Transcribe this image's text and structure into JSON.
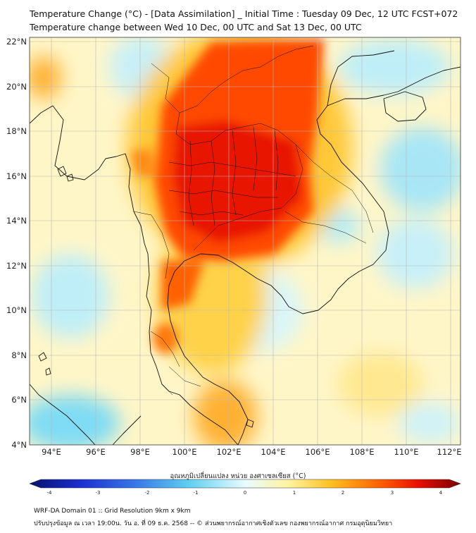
{
  "title": {
    "line1": "Temperature Change (°C) - [Data Assimilation] _ Initial Time : Tuesday 09 Dec, 12 UTC FCST+072",
    "line2": "Temperature change between Wed 10 Dec, 00 UTC and Sat 13 Dec, 00 UTC"
  },
  "map": {
    "lon_range": [
      93,
      112.5
    ],
    "lat_range": [
      4,
      22.2
    ],
    "lon_ticks": [
      "94°E",
      "96°E",
      "98°E",
      "100°E",
      "102°E",
      "104°E",
      "106°E",
      "108°E",
      "110°E",
      "112°E"
    ],
    "lat_ticks": [
      "22°N",
      "20°N",
      "18°N",
      "16°N",
      "14°N",
      "12°N",
      "10°N",
      "8°N",
      "6°N",
      "4°N"
    ],
    "grid": true
  },
  "colorbar": {
    "label": "อุณหภูมิเปลี่ยนแปลง หน่วย องศาเซลเซียส (°C)",
    "ticks": [
      "-4",
      "-3",
      "-2",
      "-1",
      "0",
      "1",
      "2",
      "3",
      "4"
    ],
    "range": [
      -4,
      4
    ],
    "colors": [
      "#08106e",
      "#1c2fd0",
      "#3a7ae8",
      "#5fd0f0",
      "#e8fbff",
      "#fff4a0",
      "#ffc020",
      "#ff5a00",
      "#e81000",
      "#7a0000"
    ]
  },
  "footer": {
    "line1": "WRF-DA Domain 01 :: Grid Resolution 9km x 9km",
    "line2": "ปรับปรุงข้อมูล ณ เวลา 19:00น. วัน อ. ที่ 09 ธ.ค. 2568 -- © ส่วนพยากรณ์อากาศเชิงตัวเลข กองพยากรณ์อากาศ กรมอุตุนิยมวิทยา"
  }
}
